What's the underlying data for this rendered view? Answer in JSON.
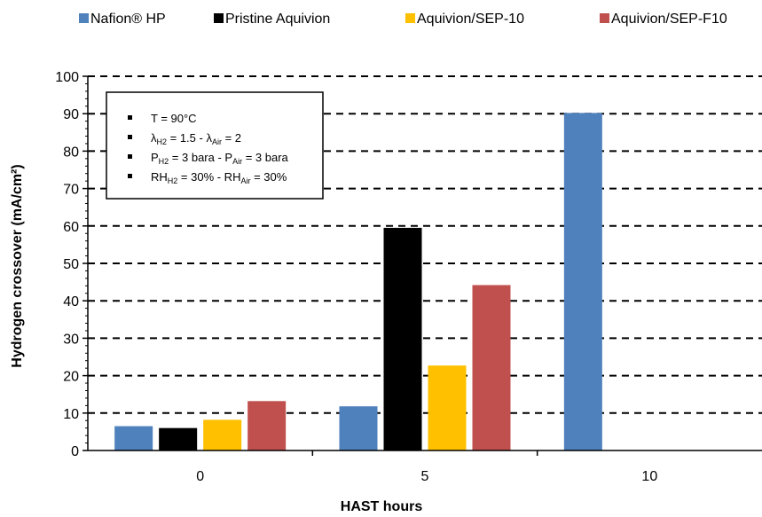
{
  "chart_data": {
    "type": "bar",
    "categories": [
      "0",
      "5",
      "10"
    ],
    "series": [
      {
        "name": "Nafion® HP",
        "color": "#4f81bd",
        "values": [
          6.5,
          11.8,
          90.2
        ]
      },
      {
        "name": "Pristine Aquivion",
        "color": "#000000",
        "values": [
          6.0,
          59.5,
          null
        ]
      },
      {
        "name": "Aquivion/SEP-10",
        "color": "#ffc000",
        "values": [
          8.2,
          22.7,
          null
        ]
      },
      {
        "name": "Aquivion/SEP-F10",
        "color": "#c0504d",
        "values": [
          13.2,
          44.2,
          null
        ]
      }
    ],
    "title": "",
    "xlabel": "HAST hours",
    "ylabel": "Hydrogen crossover (mA/cm²)",
    "ylim": [
      0,
      100
    ],
    "yticks": [
      0,
      10,
      20,
      30,
      40,
      50,
      60,
      70,
      80,
      90,
      100
    ],
    "grid": "dashed horizontal",
    "legend_position": "top",
    "annotations": [
      {
        "parts": [
          {
            "t": "T = 90°C"
          }
        ]
      },
      {
        "parts": [
          {
            "t": "λ"
          },
          {
            "t": "H2",
            "sub": true
          },
          {
            "t": " = 1.5 - λ"
          },
          {
            "t": "Air",
            "sub": true
          },
          {
            "t": " = 2"
          }
        ]
      },
      {
        "parts": [
          {
            "t": "P"
          },
          {
            "t": "H2",
            "sub": true
          },
          {
            "t": " = 3 bara - P"
          },
          {
            "t": "Air",
            "sub": true
          },
          {
            "t": " = 3 bara"
          }
        ]
      },
      {
        "parts": [
          {
            "t": "RH"
          },
          {
            "t": "H2",
            "sub": true
          },
          {
            "t": " = 30% - RH"
          },
          {
            "t": "Air",
            "sub": true
          },
          {
            "t": " = 30%"
          }
        ]
      }
    ]
  }
}
